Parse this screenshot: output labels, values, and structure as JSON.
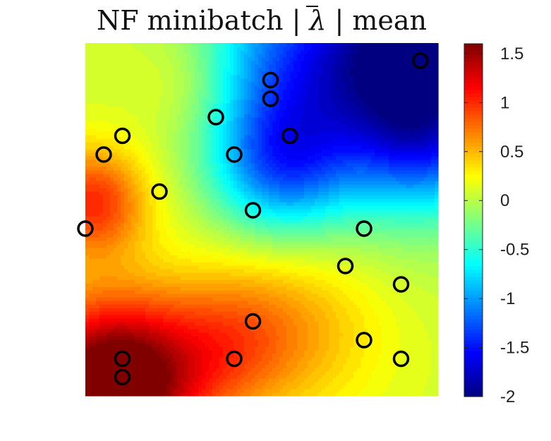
{
  "chart_data": {
    "type": "heatmap",
    "title": "NF minibatch | λ̄ | mean",
    "title_parts": {
      "prefix": "NF minibatch |",
      "symbol": "λ",
      "suffix": "| mean"
    },
    "xlim": [
      0,
      1
    ],
    "ylim": [
      0,
      1
    ],
    "colormap": "jet",
    "colorbar": {
      "range": [
        -2,
        1.6
      ],
      "ticks": [
        -2,
        -1.5,
        -1,
        -0.5,
        0,
        0.5,
        1,
        1.5
      ],
      "tick_labels": [
        "-2",
        "-1.5",
        "-1",
        "-0.5",
        "0",
        "0.5",
        "1",
        "1.5"
      ]
    },
    "field_components": {
      "baseline": 0.1,
      "bumps": [
        {
          "x": 0.08,
          "y": 0.03,
          "amp": 1.9,
          "width": 0.17
        },
        {
          "x": 0.4,
          "y": 0.15,
          "amp": 0.5,
          "width": 0.14
        },
        {
          "x": 0.02,
          "y": 0.55,
          "amp": 0.9,
          "width": 0.11
        },
        {
          "x": 0.6,
          "y": 0.2,
          "amp": 0.4,
          "width": 0.18
        },
        {
          "x": 0.92,
          "y": 0.95,
          "amp": -2.25,
          "width": 0.25
        },
        {
          "x": 0.55,
          "y": 0.65,
          "amp": -1.05,
          "width": 0.14
        },
        {
          "x": 0.48,
          "y": 0.95,
          "amp": -0.65,
          "width": 0.18
        },
        {
          "x": 0.95,
          "y": 0.7,
          "amp": -0.4,
          "width": 0.12
        },
        {
          "x": 0.3,
          "y": 0.9,
          "amp": 0.3,
          "width": 0.12
        }
      ]
    },
    "points": [
      {
        "x": 0.95,
        "y": 0.95
      },
      {
        "x": 0.525,
        "y": 0.895
      },
      {
        "x": 0.525,
        "y": 0.842
      },
      {
        "x": 0.37,
        "y": 0.79
      },
      {
        "x": 0.105,
        "y": 0.737
      },
      {
        "x": 0.58,
        "y": 0.737
      },
      {
        "x": 0.052,
        "y": 0.684
      },
      {
        "x": 0.422,
        "y": 0.684
      },
      {
        "x": 0.21,
        "y": 0.579
      },
      {
        "x": 0.475,
        "y": 0.526
      },
      {
        "x": 0.0,
        "y": 0.474
      },
      {
        "x": 0.79,
        "y": 0.474
      },
      {
        "x": 0.737,
        "y": 0.368
      },
      {
        "x": 0.895,
        "y": 0.316
      },
      {
        "x": 0.475,
        "y": 0.211
      },
      {
        "x": 0.79,
        "y": 0.158
      },
      {
        "x": 0.105,
        "y": 0.105
      },
      {
        "x": 0.422,
        "y": 0.105
      },
      {
        "x": 0.895,
        "y": 0.105
      },
      {
        "x": 0.105,
        "y": 0.053
      }
    ],
    "marker_style": {
      "shape": "circle",
      "fill": "none",
      "edge_color": "#000000"
    },
    "grid": false,
    "legend": "none"
  }
}
